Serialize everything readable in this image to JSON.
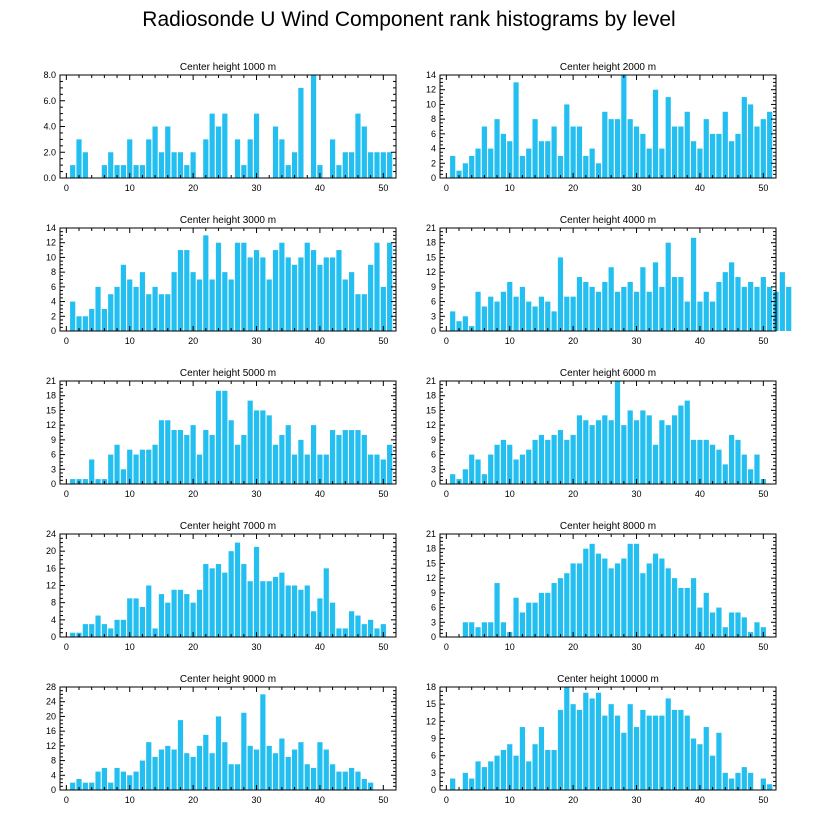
{
  "title": "Radiosonde U Wind Component rank histograms by level",
  "colors": {
    "bar": "#22bff0",
    "axis": "#000000"
  },
  "chart_data": [
    {
      "type": "bar",
      "title": "Center height 1000 m",
      "xlim": [
        -1,
        52
      ],
      "ylim": [
        0,
        8
      ],
      "xticks": [
        0,
        10,
        20,
        30,
        40,
        50
      ],
      "yticks": [
        0,
        2,
        4,
        6,
        8
      ],
      "ytick_labels": [
        "0.0",
        "2.0",
        "4.0",
        "6.0",
        "8.0"
      ],
      "values": [
        0,
        1,
        3,
        2,
        0,
        0,
        1,
        2,
        1,
        1,
        3,
        1,
        1,
        3,
        4,
        2,
        4,
        2,
        2,
        1,
        2,
        0,
        3,
        5,
        4,
        5,
        0,
        3,
        1,
        3,
        5,
        0,
        0,
        4,
        3,
        1,
        2,
        7,
        0,
        8,
        1,
        0,
        3,
        1,
        2,
        2,
        5,
        4,
        2,
        2,
        2,
        2
      ]
    },
    {
      "type": "bar",
      "title": "Center height 2000 m",
      "xlim": [
        -1,
        52
      ],
      "ylim": [
        0,
        14
      ],
      "xticks": [
        0,
        10,
        20,
        30,
        40,
        50
      ],
      "yticks": [
        0,
        2,
        4,
        6,
        8,
        10,
        12,
        14
      ],
      "ytick_labels": [
        "0",
        "2",
        "4",
        "6",
        "8",
        "10",
        "12",
        "14"
      ],
      "values": [
        0,
        3,
        1,
        2,
        3,
        4,
        7,
        4,
        8,
        6,
        5,
        13,
        3,
        4,
        8,
        5,
        5,
        7,
        3,
        10,
        7,
        7,
        3,
        4,
        2,
        9,
        8,
        8,
        14,
        8,
        7,
        6,
        4,
        12,
        4,
        11,
        7,
        7,
        9,
        5,
        4,
        8,
        6,
        6,
        9,
        5,
        6,
        11,
        10,
        7,
        8,
        9
      ]
    },
    {
      "type": "bar",
      "title": "Center height 3000 m",
      "xlim": [
        -1,
        52
      ],
      "ylim": [
        0,
        14
      ],
      "xticks": [
        0,
        10,
        20,
        30,
        40,
        50
      ],
      "yticks": [
        0,
        2,
        4,
        6,
        8,
        10,
        12,
        14
      ],
      "ytick_labels": [
        "0",
        "2",
        "4",
        "6",
        "8",
        "10",
        "12",
        "14"
      ],
      "values": [
        0,
        4,
        2,
        2,
        3,
        6,
        3,
        5,
        6,
        9,
        7,
        6,
        8,
        5,
        6,
        5,
        5,
        8,
        11,
        11,
        8,
        7,
        13,
        7,
        12,
        8,
        7,
        12,
        12,
        10,
        11,
        10,
        7,
        11,
        12,
        10,
        9,
        10,
        12,
        11,
        9,
        10,
        10,
        11,
        7,
        8,
        5,
        5,
        9,
        12,
        6,
        12
      ]
    },
    {
      "type": "bar",
      "title": "Center height 4000 m",
      "xlim": [
        -1,
        52
      ],
      "ylim": [
        0,
        21
      ],
      "xticks": [
        0,
        10,
        20,
        30,
        40,
        50
      ],
      "yticks": [
        0,
        3,
        6,
        9,
        12,
        15,
        18,
        21
      ],
      "ytick_labels": [
        "0",
        "3",
        "6",
        "9",
        "12",
        "15",
        "18",
        "21"
      ],
      "values": [
        0,
        4,
        2,
        3,
        1,
        8,
        5,
        7,
        6,
        8,
        10,
        7,
        9,
        6,
        5,
        7,
        6,
        4,
        15,
        7,
        7,
        11,
        10,
        9,
        8,
        10,
        13,
        8,
        9,
        10,
        8,
        13,
        8,
        14,
        9,
        18,
        11,
        11,
        6,
        19,
        6,
        8,
        6,
        10,
        12,
        14,
        11,
        9,
        10,
        9,
        11,
        9,
        8,
        12,
        9
      ]
    },
    {
      "type": "bar",
      "title": "Center height 5000 m",
      "xlim": [
        -1,
        52
      ],
      "ylim": [
        0,
        21
      ],
      "xticks": [
        0,
        10,
        20,
        30,
        40,
        50
      ],
      "yticks": [
        0,
        3,
        6,
        9,
        12,
        15,
        18,
        21
      ],
      "ytick_labels": [
        "0",
        "3",
        "6",
        "9",
        "12",
        "15",
        "18",
        "21"
      ],
      "values": [
        0,
        1,
        1,
        1,
        5,
        1,
        1,
        6,
        8,
        3,
        7,
        6,
        7,
        7,
        8,
        13,
        13,
        11,
        11,
        10,
        12,
        6,
        11,
        10,
        19,
        19,
        13,
        8,
        10,
        17,
        15,
        15,
        14,
        8,
        10,
        12,
        6,
        9,
        6,
        12,
        6,
        6,
        11,
        10,
        11,
        11,
        11,
        10,
        6,
        6,
        5,
        8
      ]
    },
    {
      "type": "bar",
      "title": "Center height 6000 m",
      "xlim": [
        -1,
        52
      ],
      "ylim": [
        0,
        21
      ],
      "xticks": [
        0,
        10,
        20,
        30,
        40,
        50
      ],
      "yticks": [
        0,
        3,
        6,
        9,
        12,
        15,
        18,
        21
      ],
      "ytick_labels": [
        "0",
        "3",
        "6",
        "9",
        "12",
        "15",
        "18",
        "21"
      ],
      "values": [
        0,
        2,
        1,
        3,
        6,
        5,
        2,
        6,
        8,
        9,
        8,
        5,
        6,
        7,
        9,
        10,
        9,
        10,
        11,
        9,
        10,
        14,
        13,
        12,
        13,
        14,
        13,
        21,
        12,
        15,
        13,
        15,
        14,
        8,
        13,
        12,
        14,
        16,
        17,
        9,
        9,
        9,
        8,
        7,
        4,
        10,
        9,
        6,
        3,
        6,
        1
      ]
    },
    {
      "type": "bar",
      "title": "Center height 7000 m",
      "xlim": [
        -1,
        52
      ],
      "ylim": [
        0,
        24
      ],
      "xticks": [
        0,
        10,
        20,
        30,
        40,
        50
      ],
      "yticks": [
        0,
        4,
        8,
        12,
        16,
        20,
        24
      ],
      "ytick_labels": [
        "0",
        "4",
        "8",
        "12",
        "16",
        "20",
        "24"
      ],
      "values": [
        0,
        1,
        1,
        3,
        3,
        5,
        3,
        2,
        4,
        4,
        9,
        9,
        7,
        12,
        2,
        10,
        8,
        11,
        11,
        10,
        8,
        11,
        17,
        16,
        17,
        15,
        20,
        22,
        17,
        13,
        21,
        13,
        13,
        14,
        15,
        12,
        12,
        11,
        12,
        6,
        9,
        16,
        8,
        2,
        2,
        6,
        5,
        3,
        4,
        2,
        3
      ]
    },
    {
      "type": "bar",
      "title": "Center height 8000 m",
      "xlim": [
        -1,
        52
      ],
      "ylim": [
        0,
        21
      ],
      "xticks": [
        0,
        10,
        20,
        30,
        40,
        50
      ],
      "yticks": [
        0,
        3,
        6,
        9,
        12,
        15,
        18,
        21
      ],
      "ytick_labels": [
        "0",
        "3",
        "6",
        "9",
        "12",
        "15",
        "18",
        "21"
      ],
      "values": [
        0,
        0,
        0,
        3,
        3,
        2,
        3,
        3,
        11,
        3,
        1,
        8,
        5,
        7,
        7,
        9,
        9,
        11,
        12,
        13,
        15,
        15,
        18,
        19,
        17,
        16,
        14,
        15,
        16,
        19,
        19,
        13,
        15,
        17,
        16,
        14,
        12,
        10,
        10,
        12,
        6,
        9,
        5,
        6,
        2,
        5,
        5,
        4,
        1,
        3,
        2
      ]
    },
    {
      "type": "bar",
      "title": "Center height 9000 m",
      "xlim": [
        -1,
        52
      ],
      "ylim": [
        0,
        28
      ],
      "xticks": [
        0,
        10,
        20,
        30,
        40,
        50
      ],
      "yticks": [
        0,
        4,
        8,
        12,
        16,
        20,
        24,
        28
      ],
      "ytick_labels": [
        "0",
        "4",
        "8",
        "12",
        "16",
        "20",
        "24",
        "28"
      ],
      "values": [
        0,
        2,
        3,
        2,
        2,
        5,
        6,
        2,
        6,
        5,
        4,
        5,
        8,
        13,
        9,
        11,
        12,
        11,
        19,
        10,
        9,
        12,
        15,
        10,
        20,
        13,
        7,
        7,
        21,
        12,
        11,
        26,
        12,
        10,
        14,
        9,
        11,
        13,
        7,
        6,
        13,
        11,
        7,
        5,
        5,
        6,
        5,
        3,
        2
      ]
    },
    {
      "type": "bar",
      "title": "Center height 10000 m",
      "xlim": [
        -1,
        52
      ],
      "ylim": [
        0,
        18
      ],
      "xticks": [
        0,
        10,
        20,
        30,
        40,
        50
      ],
      "yticks": [
        0,
        3,
        6,
        9,
        12,
        15,
        18
      ],
      "ytick_labels": [
        "0",
        "3",
        "6",
        "9",
        "12",
        "15",
        "18"
      ],
      "values": [
        0,
        2,
        0,
        3,
        2,
        5,
        4,
        5,
        6,
        7,
        8,
        6,
        11,
        5,
        8,
        11,
        7,
        7,
        14,
        18,
        15,
        14,
        17,
        16,
        17,
        13,
        15,
        13,
        10,
        15,
        11,
        14,
        13,
        13,
        13,
        16,
        14,
        14,
        13,
        9,
        8,
        11,
        6,
        10,
        3,
        2,
        3,
        4,
        3,
        0,
        2,
        1
      ]
    }
  ]
}
